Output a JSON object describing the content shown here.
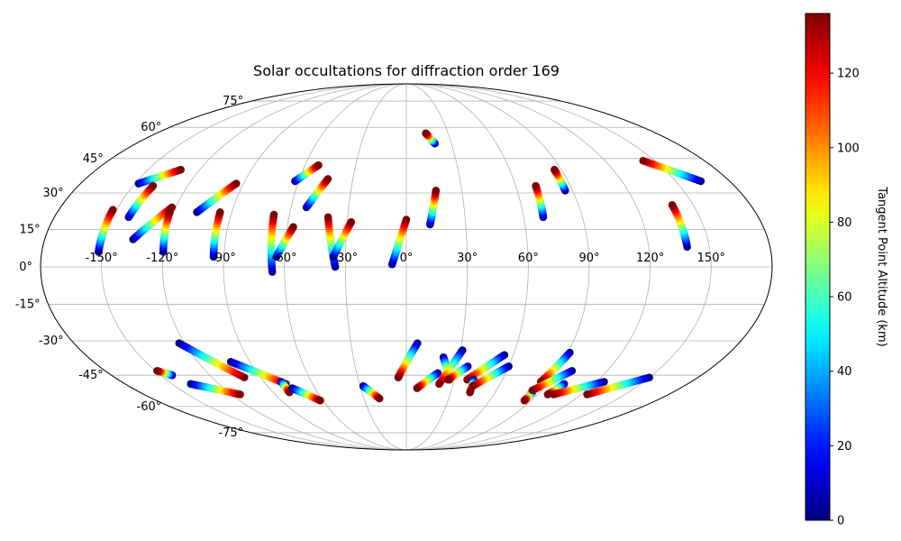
{
  "chart_data": {
    "type": "scatter",
    "projection": "mollweide",
    "title": "Solar occultations for diffraction order 169",
    "grid": true,
    "lon_ticks": [
      {
        "value": -150,
        "label": "-150°"
      },
      {
        "value": -120,
        "label": "-120°"
      },
      {
        "value": -90,
        "label": "-90°"
      },
      {
        "value": -60,
        "label": "-60°"
      },
      {
        "value": -30,
        "label": "-30°"
      },
      {
        "value": 0,
        "label": "0°"
      },
      {
        "value": 30,
        "label": "30°"
      },
      {
        "value": 60,
        "label": "60°"
      },
      {
        "value": 90,
        "label": "90°"
      },
      {
        "value": 120,
        "label": "120°"
      },
      {
        "value": 150,
        "label": "150°"
      }
    ],
    "lat_ticks": [
      {
        "value": 75,
        "label": "75°"
      },
      {
        "value": 60,
        "label": "60°"
      },
      {
        "value": 45,
        "label": "45°"
      },
      {
        "value": 30,
        "label": "30°"
      },
      {
        "value": 15,
        "label": "15°"
      },
      {
        "value": 0,
        "label": "0°"
      },
      {
        "value": -15,
        "label": "-15°"
      },
      {
        "value": -30,
        "label": "-30°"
      },
      {
        "value": -45,
        "label": "-45°"
      },
      {
        "value": -60,
        "label": "-60°"
      },
      {
        "value": -75,
        "label": "-75°"
      }
    ],
    "colorbar": {
      "label": "Tangent Point Altitude (km)",
      "colormap": "jet",
      "range": [
        0,
        136
      ],
      "ticks": [
        {
          "value": 0,
          "label": "0"
        },
        {
          "value": 20,
          "label": "20"
        },
        {
          "value": 40,
          "label": "40"
        },
        {
          "value": 60,
          "label": "60"
        },
        {
          "value": 80,
          "label": "80"
        },
        {
          "value": 100,
          "label": "100"
        },
        {
          "value": 120,
          "label": "120"
        }
      ]
    },
    "tracks": [
      {
        "lon_start": -152,
        "lat_start": 6,
        "lon_end": -152,
        "lat_end": 23
      },
      {
        "lon_start": -148,
        "lat_start": 34,
        "lon_end": -131,
        "lat_end": 40
      },
      {
        "lon_start": -142,
        "lat_start": 20,
        "lon_end": -139,
        "lat_end": 33
      },
      {
        "lon_start": -136,
        "lat_start": 11,
        "lon_end": -122,
        "lat_end": 24
      },
      {
        "lon_start": -120,
        "lat_start": 6,
        "lon_end": -122,
        "lat_end": 22
      },
      {
        "lon_start": -108,
        "lat_start": 22,
        "lon_end": -94,
        "lat_end": 34
      },
      {
        "lon_start": -95,
        "lat_start": 4,
        "lon_end": -96,
        "lat_end": 22
      },
      {
        "lon_start": -62,
        "lat_start": 35,
        "lon_end": -52,
        "lat_end": 42
      },
      {
        "lon_start": -66,
        "lat_start": -2,
        "lon_end": -68,
        "lat_end": 21
      },
      {
        "lon_start": -64,
        "lat_start": 4,
        "lon_end": -57,
        "lat_end": 16
      },
      {
        "lon_start": -52,
        "lat_start": 24,
        "lon_end": -44,
        "lat_end": 36
      },
      {
        "lon_start": -35,
        "lat_start": 0,
        "lon_end": -40,
        "lat_end": 20
      },
      {
        "lon_start": -36,
        "lat_start": 4,
        "lon_end": -28,
        "lat_end": 18
      },
      {
        "lon_start": -7,
        "lat_start": 1,
        "lon_end": 0,
        "lat_end": 19
      },
      {
        "lon_start": 12,
        "lat_start": 17,
        "lon_end": 16,
        "lat_end": 31
      },
      {
        "lon_start": 19,
        "lat_start": 52,
        "lon_end": 14,
        "lat_end": 57
      },
      {
        "lon_start": 70,
        "lat_start": 20,
        "lon_end": 71,
        "lat_end": 33
      },
      {
        "lon_start": 86,
        "lat_start": 31,
        "lon_end": 86,
        "lat_end": 40
      },
      {
        "lon_start": 164,
        "lat_start": 35,
        "lon_end": 143,
        "lat_end": 44
      },
      {
        "lon_start": 139,
        "lat_start": 8,
        "lon_end": 139,
        "lat_end": 25
      },
      {
        "lon_start": -143,
        "lat_start": -45,
        "lon_end": -149,
        "lat_end": -43
      },
      {
        "lon_start": -123,
        "lat_start": -31,
        "lon_end": -100,
        "lat_end": -46
      },
      {
        "lon_start": -138,
        "lat_start": -49,
        "lon_end": -114,
        "lat_end": -54
      },
      {
        "lon_start": -101,
        "lat_start": -39,
        "lon_end": -77,
        "lat_end": -49
      },
      {
        "lon_start": -79,
        "lat_start": -48,
        "lon_end": -79,
        "lat_end": -53
      },
      {
        "lon_start": -75,
        "lat_start": -51,
        "lon_end": -62,
        "lat_end": -57
      },
      {
        "lon_start": -28,
        "lat_start": -50,
        "lon_end": -19,
        "lat_end": -56
      },
      {
        "lon_start": 6,
        "lat_start": -31,
        "lon_end": -5,
        "lat_end": -46
      },
      {
        "lon_start": 19,
        "lat_start": -44,
        "lon_end": 7,
        "lat_end": -51
      },
      {
        "lon_start": 21,
        "lat_start": -37,
        "lon_end": 27,
        "lat_end": -47
      },
      {
        "lon_start": 31,
        "lat_start": -34,
        "lon_end": 21,
        "lat_end": -49
      },
      {
        "lon_start": 36,
        "lat_start": -41,
        "lon_end": 26,
        "lat_end": -47
      },
      {
        "lon_start": 55,
        "lat_start": -36,
        "lon_end": 38,
        "lat_end": -47
      },
      {
        "lon_start": 42,
        "lat_start": -47,
        "lon_end": 43,
        "lat_end": -53
      },
      {
        "lon_start": 60,
        "lat_start": -41,
        "lon_end": 43,
        "lat_end": -50
      },
      {
        "lon_start": 91,
        "lat_start": -35,
        "lon_end": 85,
        "lat_end": -48
      },
      {
        "lon_start": 85,
        "lat_start": -53,
        "lon_end": 85,
        "lat_end": -57
      },
      {
        "lon_start": 99,
        "lat_start": -43,
        "lon_end": 84,
        "lat_end": -52
      },
      {
        "lon_start": 101,
        "lat_start": -49,
        "lon_end": 97,
        "lat_end": -54
      },
      {
        "lon_start": 125,
        "lat_start": -48,
        "lon_end": 101,
        "lat_end": -54
      },
      {
        "lon_start": 150,
        "lat_start": -46,
        "lon_end": 124,
        "lat_end": -54
      }
    ]
  }
}
